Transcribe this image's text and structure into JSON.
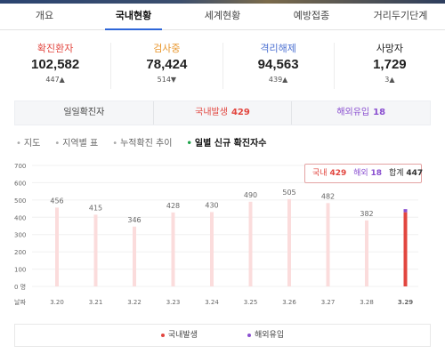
{
  "tabs": [
    {
      "label": "개요"
    },
    {
      "label": "국내현황"
    },
    {
      "label": "세계현황"
    },
    {
      "label": "예방접종"
    },
    {
      "label": "거리두기단계"
    }
  ],
  "stats": [
    {
      "label": "확진환자",
      "value": "102,582",
      "delta": "447▲",
      "color": "#e2463f"
    },
    {
      "label": "검사중",
      "value": "78,424",
      "delta": "514▼",
      "color": "#e8962c"
    },
    {
      "label": "격리해제",
      "value": "94,563",
      "delta": "439▲",
      "color": "#4a6fd1"
    },
    {
      "label": "사망자",
      "value": "1,729",
      "delta": "3▲",
      "color": "#222222"
    }
  ],
  "daily": {
    "label": "일일확진자",
    "domestic_label": "국내발생",
    "domestic_value": "429",
    "overseas_label": "해외유입",
    "overseas_value": "18"
  },
  "subnav": [
    {
      "label": "지도"
    },
    {
      "label": "지역별 표"
    },
    {
      "label": "누적확진 추이"
    },
    {
      "label": "일별 신규 확진자수"
    }
  ],
  "tooltip": {
    "domestic_label": "국내",
    "domestic_value": "429",
    "overseas_label": "해외",
    "overseas_value": "18",
    "total_label": "합계",
    "total_value": "447"
  },
  "legend": {
    "domestic": "국내발생",
    "overseas": "해외유입"
  },
  "colors": {
    "domestic": "#e2463f",
    "overseas": "#8a4fd0",
    "bar_faded": "#fbdcdc"
  },
  "chart_data": {
    "type": "bar",
    "x_axis_label": "날짜",
    "y_tick_labels": [
      "700",
      "600",
      "500",
      "400",
      "300",
      "200",
      "100",
      "0 명"
    ],
    "ylim": [
      0,
      700
    ],
    "categories": [
      "3.20",
      "3.21",
      "3.22",
      "3.23",
      "3.24",
      "3.25",
      "3.26",
      "3.27",
      "3.28",
      "3.29"
    ],
    "totals": [
      456,
      415,
      346,
      428,
      430,
      490,
      505,
      482,
      382,
      447
    ],
    "selected_index": 9,
    "selected_split": {
      "domestic": 429,
      "overseas": 18
    },
    "grid": true,
    "legend_position": "bottom"
  }
}
